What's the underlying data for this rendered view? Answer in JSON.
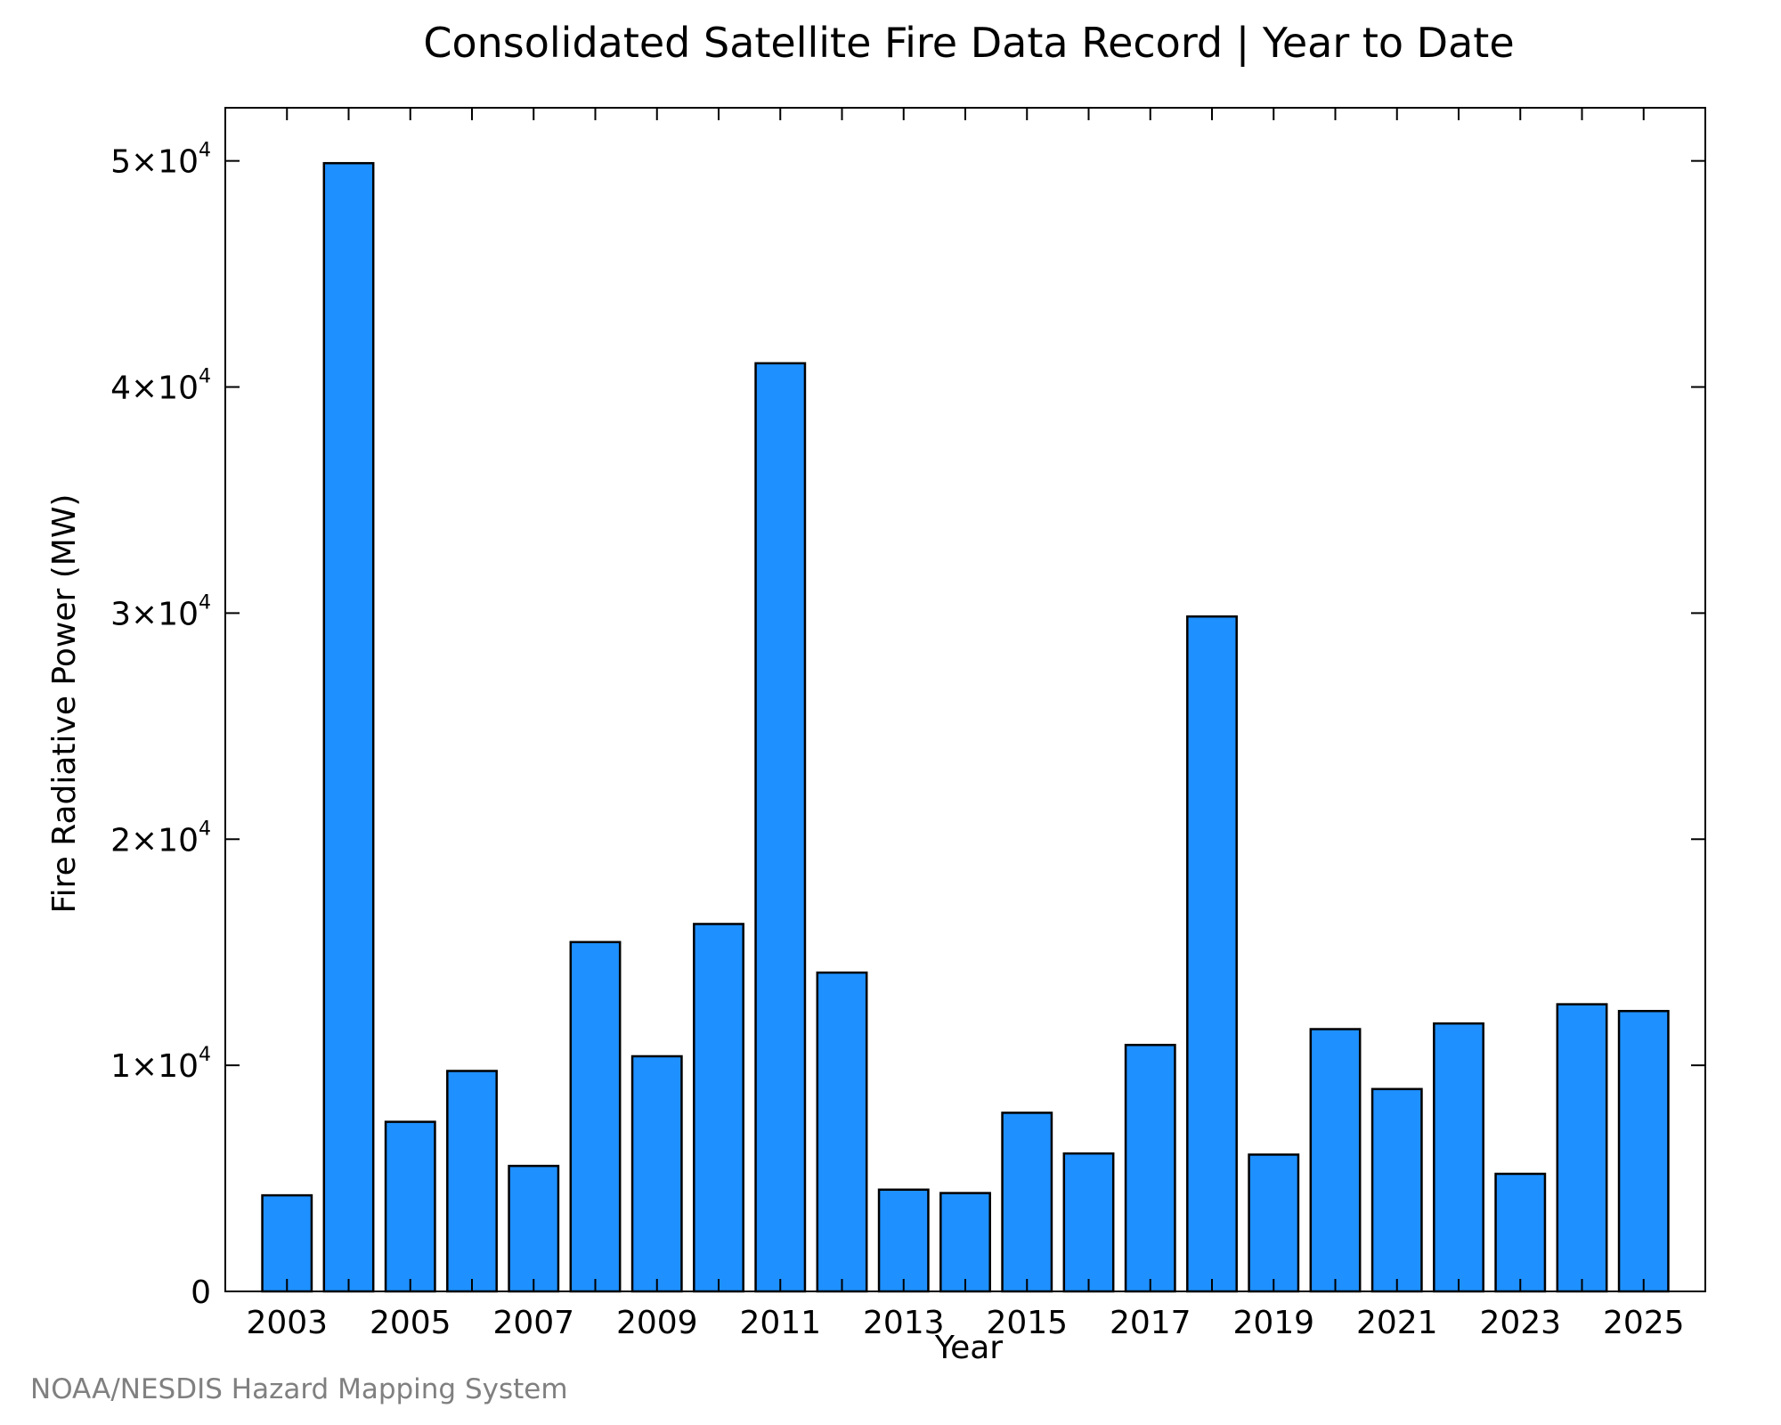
{
  "credit": "NOAA/NESDIS Hazard Mapping System",
  "chart_data": {
    "type": "bar",
    "title": "Consolidated Satellite Fire Data Record | Year to Date",
    "xlabel": "Year",
    "ylabel": "Fire Radiative Power (MW)",
    "categories": [
      2003,
      2004,
      2005,
      2006,
      2007,
      2008,
      2009,
      2010,
      2011,
      2012,
      2013,
      2014,
      2015,
      2016,
      2017,
      2018,
      2019,
      2020,
      2021,
      2022,
      2023,
      2024,
      2025
    ],
    "values": [
      4250,
      49900,
      7500,
      9750,
      5550,
      15450,
      10400,
      16250,
      41050,
      14100,
      4500,
      4350,
      7900,
      6100,
      10900,
      29850,
      6050,
      11600,
      8950,
      11850,
      5200,
      12700,
      12400
    ],
    "x_tick_labels": [
      "2003",
      "2005",
      "2007",
      "2009",
      "2011",
      "2013",
      "2015",
      "2017",
      "2019",
      "2021",
      "2023",
      "2025"
    ],
    "y_tick_labels": [
      {
        "value": 0,
        "mantissa": "0",
        "exponent": ""
      },
      {
        "value": 10000,
        "mantissa": "1×10",
        "exponent": "4"
      },
      {
        "value": 20000,
        "mantissa": "2×10",
        "exponent": "4"
      },
      {
        "value": 30000,
        "mantissa": "3×10",
        "exponent": "4"
      },
      {
        "value": 40000,
        "mantissa": "4×10",
        "exponent": "4"
      },
      {
        "value": 50000,
        "mantissa": "5×10",
        "exponent": "4"
      }
    ],
    "ylim": [
      0,
      52350
    ],
    "xlim": [
      2002,
      2026
    ],
    "grid": false,
    "legend": "none",
    "bar_color": "#1e90ff",
    "edge_color": "#000000"
  }
}
